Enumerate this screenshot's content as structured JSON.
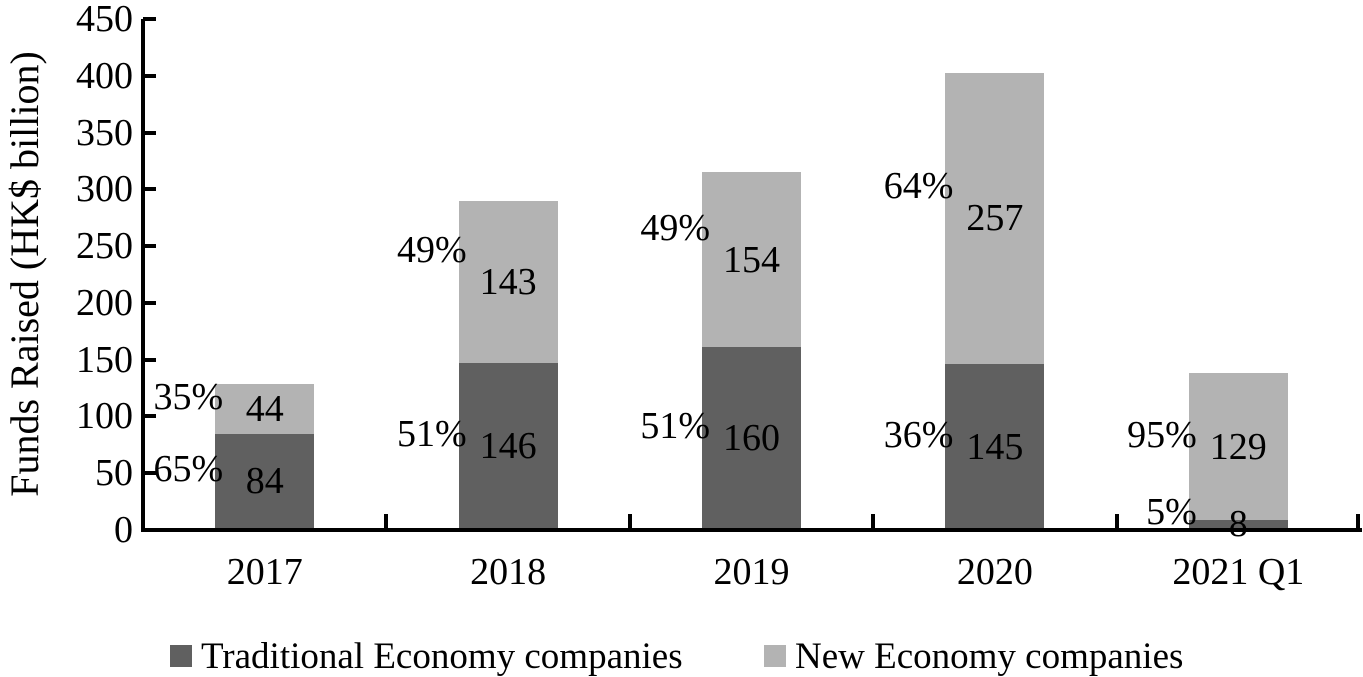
{
  "chart_data": {
    "type": "bar",
    "stacked": true,
    "title": "",
    "ylabel": "Funds Raised (HK$ billion)",
    "xlabel": "",
    "ylim": [
      0,
      450
    ],
    "yticks": [
      0,
      50,
      100,
      150,
      200,
      250,
      300,
      350,
      400,
      450
    ],
    "grid": false,
    "legend_position": "bottom",
    "background": "#ffffff",
    "axis_color": "#000000",
    "label_color": "#000000",
    "categories": [
      "2017",
      "2018",
      "2019",
      "2020",
      "2021 Q1"
    ],
    "series": [
      {
        "name": "Traditional Economy companies",
        "color": "#606060",
        "values": [
          84,
          146,
          160,
          145,
          8
        ],
        "pct_labels": [
          "65%",
          "51%",
          "51%",
          "36%",
          "5%"
        ]
      },
      {
        "name": "New Economy companies",
        "color": "#b3b3b3",
        "values": [
          44,
          143,
          154,
          257,
          129
        ],
        "pct_labels": [
          "35%",
          "49%",
          "49%",
          "64%",
          "95%"
        ]
      }
    ]
  }
}
